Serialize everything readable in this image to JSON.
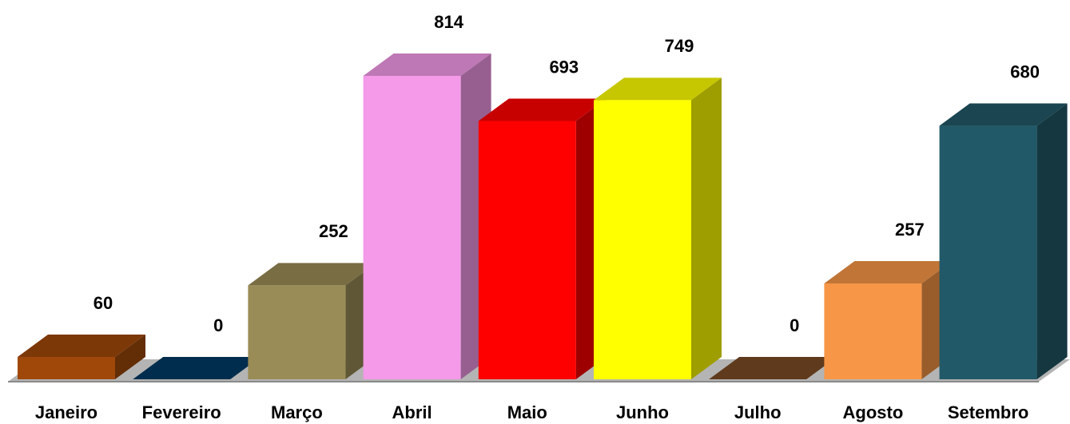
{
  "chart_data": {
    "type": "bar3d",
    "categories": [
      "Janeiro",
      "Fevereiro",
      "Março",
      "Abril",
      "Maio",
      "Junho",
      "Julho",
      "Agosto",
      "Setembro"
    ],
    "values": [
      60,
      0,
      252,
      814,
      693,
      749,
      0,
      257,
      680
    ],
    "colors": [
      "#a0480a",
      "#003a63",
      "#9a8c56",
      "#f49ae8",
      "#ff0000",
      "#ffff00",
      "#7a4a25",
      "#f79646",
      "#215968"
    ]
  }
}
